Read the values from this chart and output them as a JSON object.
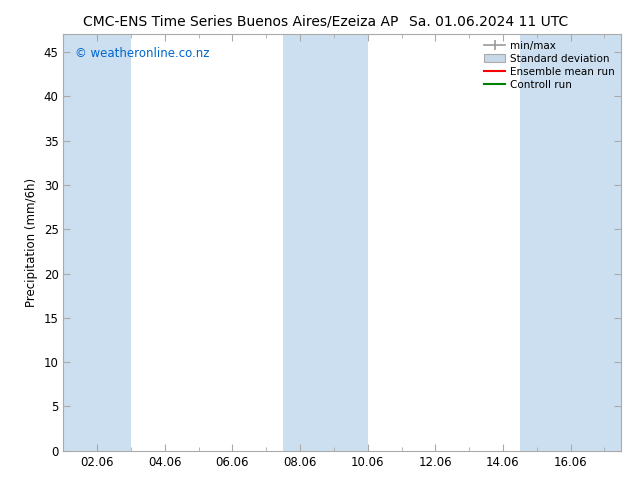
{
  "title_left": "CMC-ENS Time Series Buenos Aires/Ezeiza AP",
  "title_right": "Sa. 01.06.2024 11 UTC",
  "ylabel": "Precipitation (mm/6h)",
  "watermark": "© weatheronline.co.nz",
  "ylim": [
    0,
    47
  ],
  "yticks": [
    0,
    5,
    10,
    15,
    20,
    25,
    30,
    35,
    40,
    45
  ],
  "xlim_start": 1.0,
  "xlim_end": 17.5,
  "xtick_labels": [
    "02.06",
    "04.06",
    "06.06",
    "08.06",
    "10.06",
    "12.06",
    "14.06",
    "16.06"
  ],
  "xtick_positions": [
    2,
    4,
    6,
    8,
    10,
    12,
    14,
    16
  ],
  "shaded_bands": [
    {
      "x_start": 1.0,
      "x_end": 3.0
    },
    {
      "x_start": 7.5,
      "x_end": 10.0
    },
    {
      "x_start": 14.5,
      "x_end": 17.5
    }
  ],
  "shade_color": "#ccdff0",
  "shade_alpha": 1.0,
  "bg_color": "#ffffff",
  "legend_labels": [
    "min/max",
    "Standard deviation",
    "Ensemble mean run",
    "Controll run"
  ],
  "minmax_color": "#999999",
  "std_color": "#c8d8e8",
  "ensemble_color": "#ff0000",
  "control_color": "#008000",
  "title_fontsize": 10,
  "axis_fontsize": 8.5,
  "watermark_color": "#0066cc",
  "spine_color": "#aaaaaa"
}
